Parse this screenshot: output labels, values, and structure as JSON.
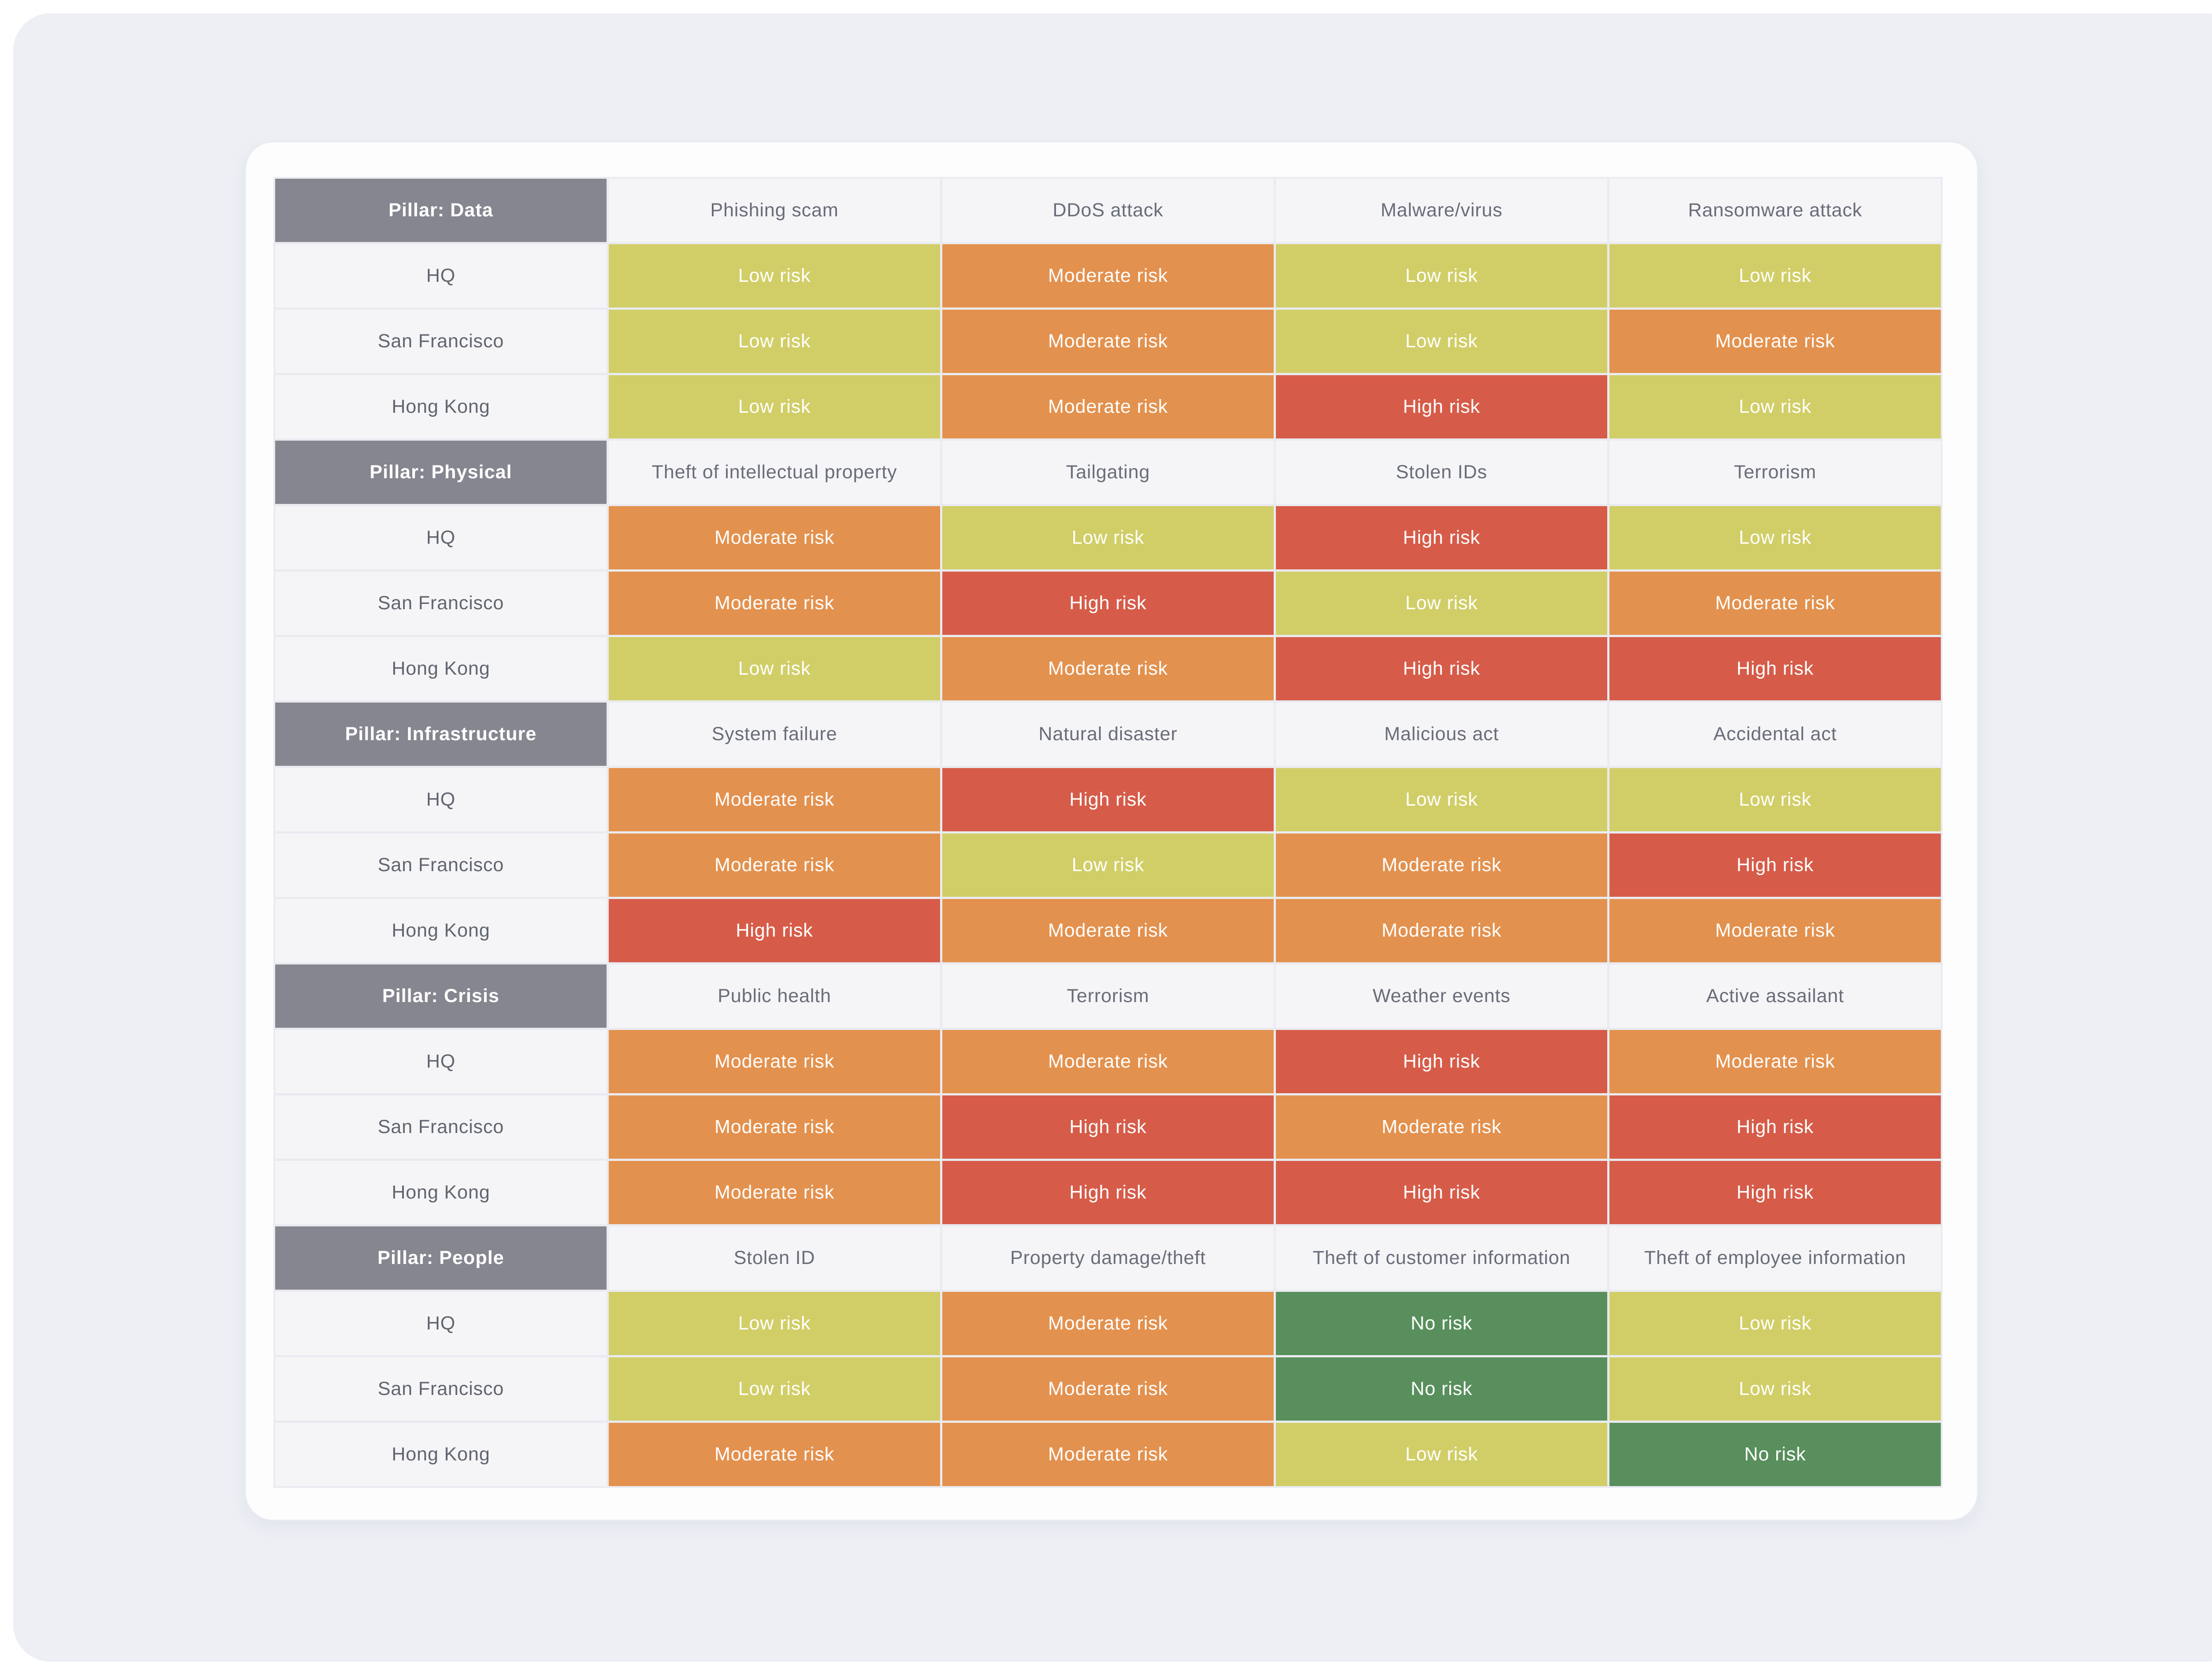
{
  "chart_data": {
    "type": "heatmap",
    "title": "",
    "columns_per_section": 4,
    "locations": [
      "HQ",
      "San Francisco",
      "Hong Kong"
    ],
    "risk_scale": [
      "No risk",
      "Low risk",
      "Moderate risk",
      "High risk"
    ],
    "risk_colors": {
      "No risk": "#588f5c",
      "Low risk": "#d1ce68",
      "Moderate risk": "#e3914e",
      "High risk": "#d65c49"
    },
    "pillar_header_color": "#85868f",
    "neutral_cell_color": "#f5f5f7",
    "sections": [
      {
        "pillar": "Pillar: Data",
        "threats": [
          "Phishing scam",
          "DDoS attack",
          "Malware/virus",
          "Ransomware attack"
        ],
        "rows": [
          {
            "location": "HQ",
            "risks": [
              "Low risk",
              "Moderate risk",
              "Low risk",
              "Low risk"
            ]
          },
          {
            "location": "San Francisco",
            "risks": [
              "Low risk",
              "Moderate risk",
              "Low risk",
              "Moderate risk"
            ]
          },
          {
            "location": "Hong Kong",
            "risks": [
              "Low risk",
              "Moderate risk",
              "High risk",
              "Low risk"
            ]
          }
        ]
      },
      {
        "pillar": "Pillar: Physical",
        "threats": [
          "Theft of intellectual property",
          "Tailgating",
          "Stolen IDs",
          "Terrorism"
        ],
        "rows": [
          {
            "location": "HQ",
            "risks": [
              "Moderate risk",
              "Low risk",
              "High risk",
              "Low risk"
            ]
          },
          {
            "location": "San Francisco",
            "risks": [
              "Moderate risk",
              "High risk",
              "Low risk",
              "Moderate risk"
            ]
          },
          {
            "location": "Hong Kong",
            "risks": [
              "Low risk",
              "Moderate risk",
              "High risk",
              "High risk"
            ]
          }
        ]
      },
      {
        "pillar": "Pillar: Infrastructure",
        "threats": [
          "System failure",
          "Natural disaster",
          "Malicious act",
          "Accidental act"
        ],
        "rows": [
          {
            "location": "HQ",
            "risks": [
              "Moderate risk",
              "High risk",
              "Low risk",
              "Low risk"
            ]
          },
          {
            "location": "San Francisco",
            "risks": [
              "Moderate risk",
              "Low risk",
              "Moderate risk",
              "High risk"
            ]
          },
          {
            "location": "Hong Kong",
            "risks": [
              "High risk",
              "Moderate risk",
              "Moderate risk",
              "Moderate risk"
            ]
          }
        ]
      },
      {
        "pillar": "Pillar: Crisis",
        "threats": [
          "Public health",
          "Terrorism",
          "Weather events",
          "Active assailant"
        ],
        "rows": [
          {
            "location": "HQ",
            "risks": [
              "Moderate risk",
              "Moderate risk",
              "High risk",
              "Moderate risk"
            ]
          },
          {
            "location": "San Francisco",
            "risks": [
              "Moderate risk",
              "High risk",
              "Moderate risk",
              "High risk"
            ]
          },
          {
            "location": "Hong Kong",
            "risks": [
              "Moderate risk",
              "High risk",
              "High risk",
              "High risk"
            ]
          }
        ]
      },
      {
        "pillar": "Pillar: People",
        "threats": [
          "Stolen ID",
          "Property damage/theft",
          "Theft of customer information",
          "Theft of employee information"
        ],
        "rows": [
          {
            "location": "HQ",
            "risks": [
              "Low risk",
              "Moderate risk",
              "No risk",
              "Low risk"
            ]
          },
          {
            "location": "San Francisco",
            "risks": [
              "Low risk",
              "Moderate risk",
              "No risk",
              "Low risk"
            ]
          },
          {
            "location": "Hong Kong",
            "risks": [
              "Moderate risk",
              "Moderate risk",
              "Low risk",
              "No risk"
            ]
          }
        ]
      }
    ]
  }
}
